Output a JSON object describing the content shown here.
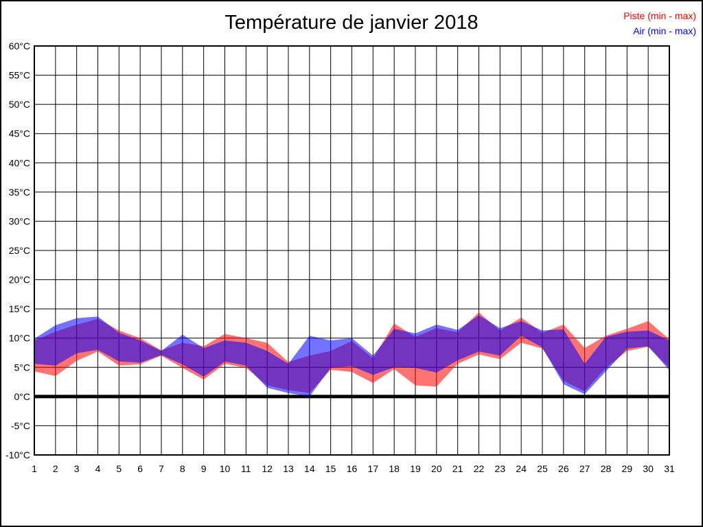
{
  "page": {
    "background": "#ffffff",
    "border_color": "#000000"
  },
  "header": {
    "title": "Température de janvier 2018"
  },
  "legend": [
    {
      "label": "Piste (min - max)",
      "color": "#ff0000"
    },
    {
      "label": "Air (min - max)",
      "color": "#0000ff"
    }
  ],
  "chart_data": {
    "type": "area",
    "title": "Température de janvier 2018",
    "xlabel": "",
    "ylabel": "",
    "x": [
      1,
      2,
      3,
      4,
      5,
      6,
      7,
      8,
      9,
      10,
      11,
      12,
      13,
      14,
      15,
      16,
      17,
      18,
      19,
      20,
      21,
      22,
      23,
      24,
      25,
      26,
      27,
      28,
      29,
      30,
      31
    ],
    "x_tick_labels": [
      "1",
      "2",
      "3",
      "4",
      "5",
      "6",
      "7",
      "8",
      "9",
      "10",
      "11",
      "12",
      "13",
      "14",
      "15",
      "16",
      "17",
      "18",
      "19",
      "20",
      "21",
      "22",
      "23",
      "24",
      "25",
      "26",
      "27",
      "28",
      "29",
      "30",
      "31"
    ],
    "ylim": [
      -10,
      60
    ],
    "y_tick_values": [
      60,
      55,
      50,
      45,
      40,
      35,
      30,
      25,
      20,
      15,
      10,
      5,
      0,
      -5,
      -10
    ],
    "y_tick_labels": [
      "60°C",
      "55°C",
      "50°C",
      "45°C",
      "40°C",
      "35°C",
      "30°C",
      "25°C",
      "20°C",
      "15°C",
      "10°C",
      "5°C",
      "0°C",
      "-5°C",
      "-10°C"
    ],
    "grid": true,
    "zero_line_value": 0,
    "legend_position": "top-right",
    "series": [
      {
        "name": "Piste (min - max)",
        "legend_color": "#ff0000",
        "fill": "rgba(255,0,0,0.55)",
        "min": [
          4.3,
          3.5,
          6.1,
          7.7,
          5.3,
          5.5,
          7.0,
          4.9,
          2.9,
          5.6,
          4.9,
          1.9,
          1.1,
          0.6,
          4.6,
          4.2,
          2.3,
          4.7,
          1.9,
          1.7,
          5.6,
          7.2,
          6.4,
          9.2,
          8.2,
          2.7,
          0.9,
          4.9,
          7.8,
          8.5,
          4.9
        ],
        "max": [
          9.6,
          11.1,
          12.3,
          13.3,
          11.3,
          10.0,
          7.9,
          9.2,
          8.6,
          10.7,
          10.0,
          9.2,
          5.9,
          7.0,
          7.8,
          9.5,
          6.5,
          12.5,
          10.2,
          11.7,
          11.0,
          14.4,
          11.3,
          13.5,
          10.9,
          12.3,
          8.3,
          10.4,
          11.6,
          12.9,
          9.8
        ]
      },
      {
        "name": "Air (min - max)",
        "legend_color": "#0000ff",
        "fill": "rgba(0,0,255,0.55)",
        "min": [
          5.6,
          5.3,
          7.4,
          8.0,
          6.0,
          5.8,
          7.1,
          5.5,
          3.4,
          6.0,
          5.3,
          1.5,
          0.6,
          0.0,
          4.9,
          5.2,
          3.7,
          5.0,
          4.9,
          4.1,
          6.2,
          7.7,
          7.0,
          10.4,
          8.4,
          2.1,
          0.4,
          4.3,
          8.2,
          8.6,
          4.5
        ],
        "max": [
          9.9,
          12.2,
          13.4,
          13.7,
          10.9,
          9.6,
          7.8,
          10.6,
          8.3,
          9.6,
          9.2,
          7.8,
          5.6,
          10.4,
          9.6,
          10.0,
          7.0,
          11.6,
          10.8,
          12.3,
          11.4,
          13.9,
          11.7,
          12.9,
          11.3,
          11.5,
          5.6,
          10.2,
          11.1,
          11.3,
          9.6
        ]
      }
    ]
  }
}
